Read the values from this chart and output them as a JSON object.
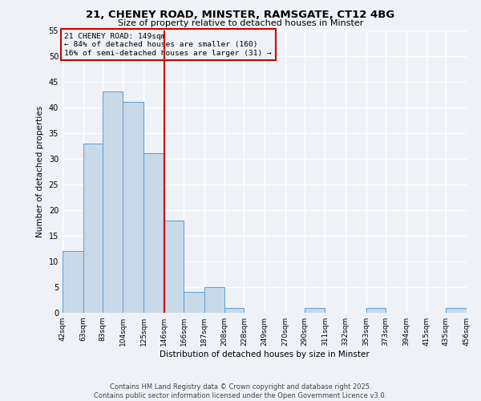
{
  "title1": "21, CHENEY ROAD, MINSTER, RAMSGATE, CT12 4BG",
  "title2": "Size of property relative to detached houses in Minster",
  "xlabel": "Distribution of detached houses by size in Minster",
  "ylabel": "Number of detached properties",
  "bin_edges": [
    42,
    63,
    83,
    104,
    125,
    146,
    166,
    187,
    208,
    228,
    249,
    270,
    290,
    311,
    332,
    353,
    373,
    394,
    415,
    435,
    456
  ],
  "counts": [
    12,
    33,
    43,
    41,
    31,
    18,
    4,
    5,
    1,
    0,
    0,
    0,
    1,
    0,
    0,
    1,
    0,
    0,
    0,
    1
  ],
  "bar_color": "#c8d9e8",
  "bar_edge_color": "#5b9bd5",
  "vline_x": 146,
  "vline_color": "#cc0000",
  "annotation_text": "21 CHENEY ROAD: 149sqm\n← 84% of detached houses are smaller (160)\n16% of semi-detached houses are larger (31) →",
  "annotation_box_edge": "#cc0000",
  "ylim": [
    0,
    55
  ],
  "yticks": [
    0,
    5,
    10,
    15,
    20,
    25,
    30,
    35,
    40,
    45,
    50,
    55
  ],
  "tick_labels": [
    "42sqm",
    "63sqm",
    "83sqm",
    "104sqm",
    "125sqm",
    "146sqm",
    "166sqm",
    "187sqm",
    "208sqm",
    "228sqm",
    "249sqm",
    "270sqm",
    "290sqm",
    "311sqm",
    "332sqm",
    "353sqm",
    "373sqm",
    "394sqm",
    "415sqm",
    "435sqm",
    "456sqm"
  ],
  "footer": "Contains HM Land Registry data © Crown copyright and database right 2025.\nContains public sector information licensed under the Open Government Licence v3.0.",
  "bg_color": "#eef2f7",
  "grid_color": "#ffffff"
}
